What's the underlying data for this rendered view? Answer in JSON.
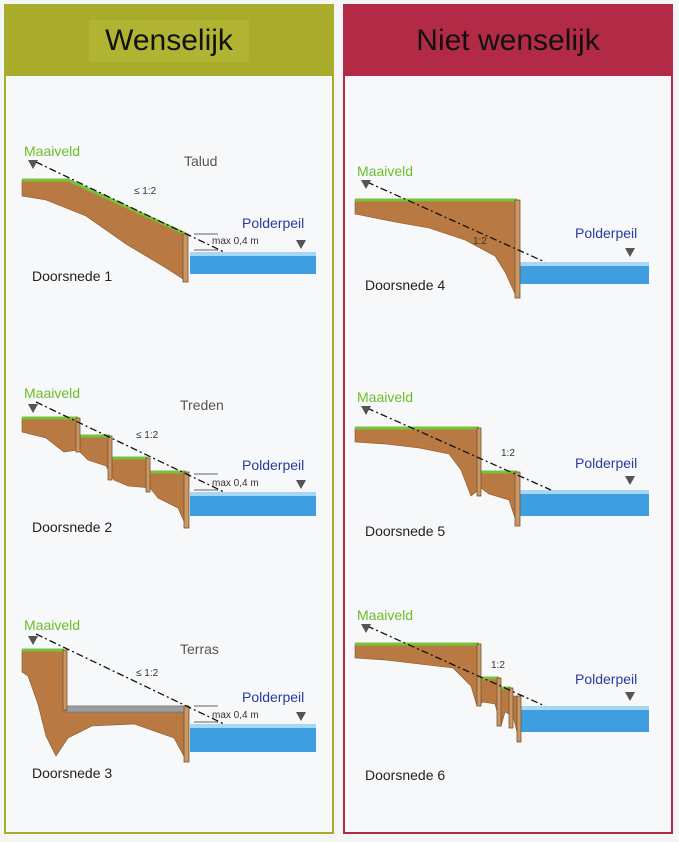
{
  "panels": {
    "good": {
      "title": "Wenselijk"
    },
    "bad": {
      "title": "Niet wenselijk"
    }
  },
  "labels": {
    "maaiveld": "Maaiveld",
    "polderpeil": "Polderpeil",
    "slope_le": "≤ 1:2",
    "slope": "1:2",
    "max": "max 0,4 m"
  },
  "sections": [
    {
      "caption": "Doorsnede 1",
      "type": "Talud"
    },
    {
      "caption": "Doorsnede 2",
      "type": "Treden"
    },
    {
      "caption": "Doorsnede 3",
      "type": "Terras"
    },
    {
      "caption": "Doorsnede 4"
    },
    {
      "caption": "Doorsnede 5"
    },
    {
      "caption": "Doorsnede 6"
    }
  ],
  "colors": {
    "good_border": "#a8ab2c",
    "bad_border": "#b12b45",
    "grass": "#76c23a",
    "water": "#3f9ee0",
    "ground": "#b87a42"
  }
}
